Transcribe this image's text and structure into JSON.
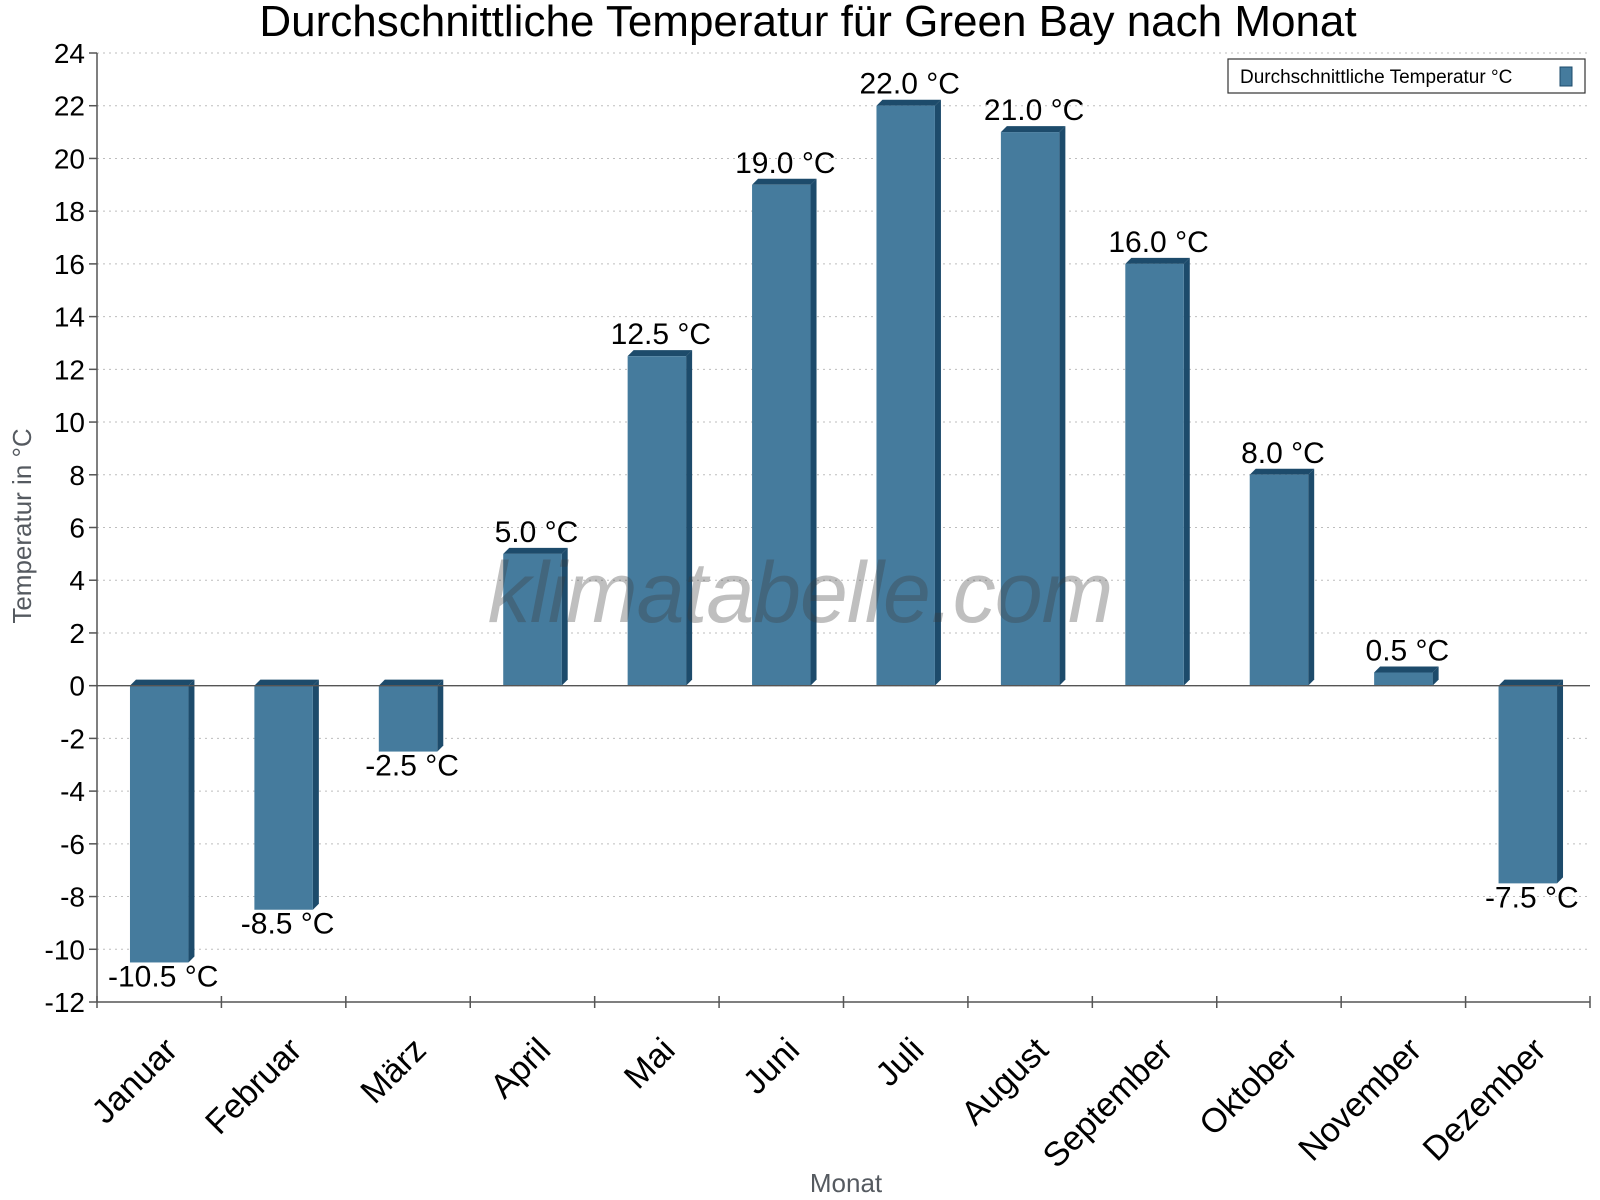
{
  "chart_data": {
    "type": "bar",
    "title": "Durchschnittliche Temperatur für Green Bay nach Monat",
    "xlabel": "Monat",
    "ylabel": "Temperatur in °C",
    "ylim": [
      -12,
      24
    ],
    "ytick_step": 2,
    "grid": true,
    "legend_position": "top-right",
    "watermark": "klimatabelle.com",
    "categories": [
      "Januar",
      "Februar",
      "März",
      "April",
      "Mai",
      "Juni",
      "Juli",
      "August",
      "September",
      "Oktober",
      "November",
      "Dezember"
    ],
    "series": [
      {
        "name": "Durchschnittliche Temperatur °C",
        "values": [
          -10.5,
          -8.5,
          -2.5,
          5.0,
          12.5,
          19.0,
          22.0,
          21.0,
          16.0,
          8.0,
          0.5,
          -7.5
        ],
        "labels": [
          "-10.5 °C",
          "-8.5 °C",
          "-2.5 °C",
          "5.0 °C",
          "12.5 °C",
          "19.0 °C",
          "22.0 °C",
          "21.0 °C",
          "16.0 °C",
          "8.0 °C",
          "0.5 °C",
          "-7.5 °C"
        ],
        "color": "#457b9d",
        "edge_color": "#1d4b6b"
      }
    ]
  }
}
